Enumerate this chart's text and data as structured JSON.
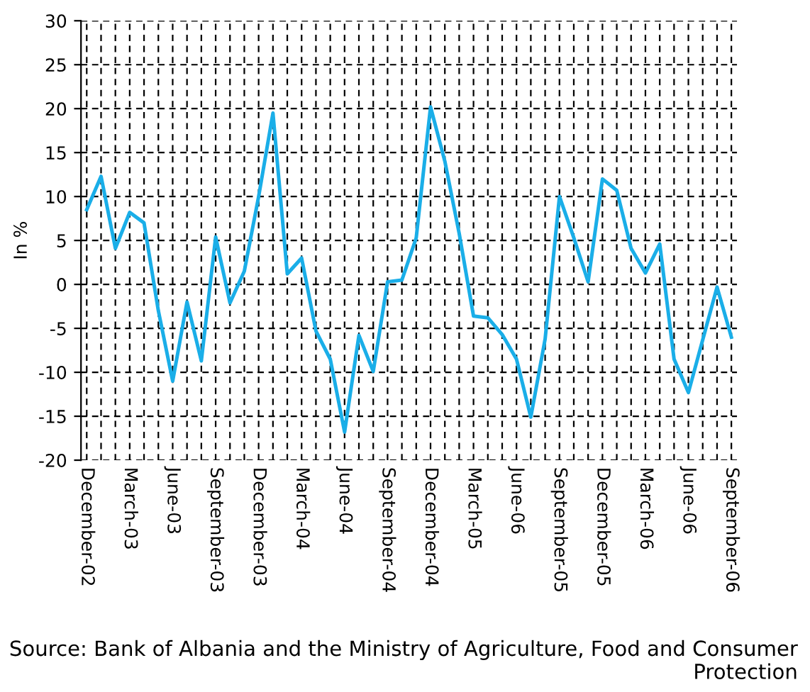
{
  "chart_data": {
    "type": "line",
    "ylabel": "In %",
    "categories": [
      "December-02",
      null,
      null,
      "March-03",
      null,
      null,
      "June-03",
      null,
      null,
      "September-03",
      null,
      null,
      "December-03",
      null,
      null,
      "March-04",
      null,
      null,
      "June-04",
      null,
      null,
      "September-04",
      null,
      null,
      "December-04",
      null,
      null,
      "March-05",
      null,
      null,
      "June-06",
      null,
      null,
      "September-05",
      null,
      null,
      "December-05",
      null,
      null,
      "March-06",
      null,
      null,
      "June-06",
      null,
      null,
      "September-06"
    ],
    "series": [
      {
        "color": "#1aaee8",
        "values": [
          8.5,
          12.3,
          4.1,
          8.2,
          7,
          -3,
          -11,
          -2,
          -8.7,
          5.4,
          -2.1,
          1.5,
          10,
          19.5,
          1.2,
          3,
          -5.3,
          -8.5,
          -16.8,
          -5.8,
          -9.9,
          0.3,
          0.5,
          5.3,
          20.2,
          14,
          5.8,
          -3.6,
          -3.8,
          -5.7,
          -8.5,
          -15.1,
          -6.2,
          10,
          5.3,
          0.3,
          12,
          10.7,
          4.1,
          1.3,
          4.6,
          -8.5,
          -12.3,
          -6.3,
          -0.3,
          -6
        ]
      }
    ],
    "ylim": [
      -20,
      30
    ],
    "yticks": [
      -20,
      -15,
      -10,
      -5,
      0,
      5,
      10,
      15,
      20,
      25,
      30
    ],
    "grid": true,
    "line_style": "solid",
    "marker": "none",
    "annotations": [
      "Source: Bank of Albania and the Ministry of Agriculture, Food and Consumer Protection"
    ]
  }
}
